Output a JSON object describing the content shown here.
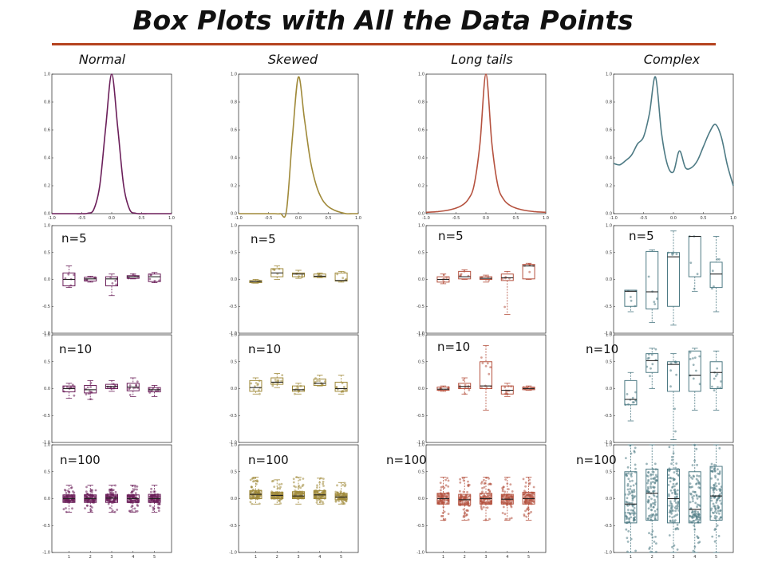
{
  "title": "Box Plots with All the Data Points",
  "rule_color": "#b5431f",
  "columns": [
    {
      "label": "Normal",
      "color": "#6b1f5a"
    },
    {
      "label": "Skewed",
      "color": "#a08a3a"
    },
    {
      "label": "Long tails",
      "color": "#b5523f"
    },
    {
      "label": "Complex",
      "color": "#4d7a84"
    }
  ],
  "row_labels": [
    "n=5",
    "n=10",
    "n=100"
  ],
  "chart_data": {
    "type": "line",
    "density_curves": {
      "xlim": [
        -1.0,
        1.0
      ],
      "ylim": [
        0.0,
        1.0
      ],
      "xticks": [
        "-1.0",
        "-0.5",
        "0.0",
        "0.5",
        "1.0"
      ],
      "yticks": [
        "0.0",
        "0.2",
        "0.4",
        "0.6",
        "0.8",
        "1.0"
      ],
      "x": [
        -1.0,
        -0.9,
        -0.8,
        -0.7,
        -0.6,
        -0.5,
        -0.4,
        -0.3,
        -0.2,
        -0.1,
        0.0,
        0.1,
        0.2,
        0.3,
        0.4,
        0.5,
        0.6,
        0.7,
        0.8,
        0.9,
        1.0
      ],
      "series": [
        {
          "name": "Normal",
          "values": [
            0,
            0,
            0,
            0,
            0,
            0,
            0.003,
            0.03,
            0.2,
            0.62,
            1.0,
            0.62,
            0.2,
            0.03,
            0.003,
            0,
            0,
            0,
            0,
            0,
            0
          ]
        },
        {
          "name": "Skewed",
          "values": [
            0,
            0,
            0,
            0,
            0,
            0,
            0,
            0,
            0.02,
            0.55,
            0.98,
            0.68,
            0.38,
            0.2,
            0.1,
            0.05,
            0.025,
            0.01,
            0,
            0,
            0
          ]
        },
        {
          "name": "Long tails",
          "values": [
            0.01,
            0.012,
            0.015,
            0.02,
            0.028,
            0.04,
            0.06,
            0.1,
            0.2,
            0.5,
            1.0,
            0.5,
            0.2,
            0.1,
            0.06,
            0.04,
            0.028,
            0.02,
            0.015,
            0.012,
            0.01
          ]
        },
        {
          "name": "Complex",
          "values": [
            0.36,
            0.35,
            0.38,
            0.42,
            0.5,
            0.55,
            0.72,
            0.98,
            0.58,
            0.35,
            0.3,
            0.45,
            0.33,
            0.33,
            0.38,
            0.48,
            0.58,
            0.64,
            0.55,
            0.35,
            0.2
          ]
        }
      ]
    },
    "box_rows": [
      {
        "label": "n=5",
        "ylim": [
          -1.0,
          1.0
        ],
        "yticks": [
          "-1.0",
          "-0.5",
          "0.0",
          "0.5",
          "1.0"
        ],
        "xticks": [],
        "panels": [
          {
            "column": "Normal",
            "boxes": [
              {
                "min": -0.15,
                "q1": -0.12,
                "median": 0.0,
                "q3": 0.12,
                "max": 0.25
              },
              {
                "min": -0.05,
                "q1": -0.03,
                "median": 0.01,
                "q3": 0.04,
                "max": 0.06
              },
              {
                "min": -0.3,
                "q1": -0.12,
                "median": 0.01,
                "q3": 0.05,
                "max": 0.1
              },
              {
                "min": 0.01,
                "q1": 0.02,
                "median": 0.05,
                "q3": 0.07,
                "max": 0.1
              },
              {
                "min": -0.06,
                "q1": -0.04,
                "median": 0.05,
                "q3": 0.1,
                "max": 0.13
              }
            ]
          },
          {
            "column": "Skewed",
            "boxes": [
              {
                "min": -0.07,
                "q1": -0.06,
                "median": -0.04,
                "q3": -0.02,
                "max": 0.0
              },
              {
                "min": 0.0,
                "q1": 0.05,
                "median": 0.12,
                "q3": 0.2,
                "max": 0.25
              },
              {
                "min": 0.02,
                "q1": 0.05,
                "median": 0.1,
                "q3": 0.12,
                "max": 0.17
              },
              {
                "min": 0.03,
                "q1": 0.04,
                "median": 0.06,
                "q3": 0.1,
                "max": 0.12
              },
              {
                "min": -0.05,
                "q1": -0.03,
                "median": -0.02,
                "q3": 0.12,
                "max": 0.15
              }
            ]
          },
          {
            "column": "Long tails",
            "boxes": [
              {
                "min": -0.08,
                "q1": -0.05,
                "median": 0.0,
                "q3": 0.05,
                "max": 0.1
              },
              {
                "min": 0.0,
                "q1": 0.01,
                "median": 0.05,
                "q3": 0.15,
                "max": 0.18
              },
              {
                "min": -0.05,
                "q1": 0.0,
                "median": 0.02,
                "q3": 0.05,
                "max": 0.08
              },
              {
                "min": -0.65,
                "q1": -0.02,
                "median": 0.03,
                "q3": 0.1,
                "max": 0.15
              },
              {
                "min": 0.0,
                "q1": 0.01,
                "median": 0.25,
                "q3": 0.28,
                "max": 0.3
              }
            ]
          },
          {
            "column": "Complex",
            "boxes": [
              {
                "min": -0.6,
                "q1": -0.5,
                "median": -0.22,
                "q3": -0.2,
                "max": -0.2
              },
              {
                "min": -0.8,
                "q1": -0.55,
                "median": -0.23,
                "q3": 0.52,
                "max": 0.55
              },
              {
                "min": -0.85,
                "q1": -0.5,
                "median": 0.42,
                "q3": 0.5,
                "max": 0.9
              },
              {
                "min": -0.22,
                "q1": 0.05,
                "median": 0.8,
                "q3": 0.8,
                "max": 0.8
              },
              {
                "min": -0.6,
                "q1": -0.15,
                "median": 0.1,
                "q3": 0.32,
                "max": 0.8
              }
            ]
          }
        ]
      },
      {
        "label": "n=10",
        "ylim": [
          -1.0,
          1.0
        ],
        "yticks": [
          "-1.0",
          "-0.5",
          "0.0",
          "0.5",
          "1.0"
        ],
        "xticks": [],
        "panels": [
          {
            "column": "Normal",
            "boxes": [
              {
                "min": -0.18,
                "q1": -0.06,
                "median": 0.0,
                "q3": 0.05,
                "max": 0.1
              },
              {
                "min": -0.2,
                "q1": -0.08,
                "median": -0.02,
                "q3": 0.06,
                "max": 0.15
              },
              {
                "min": -0.05,
                "q1": 0.0,
                "median": 0.04,
                "q3": 0.08,
                "max": 0.15
              },
              {
                "min": -0.15,
                "q1": -0.04,
                "median": 0.03,
                "q3": 0.1,
                "max": 0.2
              },
              {
                "min": -0.15,
                "q1": -0.06,
                "median": -0.02,
                "q3": 0.02,
                "max": 0.06
              }
            ]
          },
          {
            "column": "Skewed",
            "boxes": [
              {
                "min": -0.1,
                "q1": -0.05,
                "median": 0.02,
                "q3": 0.15,
                "max": 0.2
              },
              {
                "min": 0.02,
                "q1": 0.08,
                "median": 0.12,
                "q3": 0.2,
                "max": 0.28
              },
              {
                "min": -0.1,
                "q1": -0.05,
                "median": -0.02,
                "q3": 0.05,
                "max": 0.1
              },
              {
                "min": 0.05,
                "q1": 0.06,
                "median": 0.1,
                "q3": 0.18,
                "max": 0.25
              },
              {
                "min": -0.1,
                "q1": -0.05,
                "median": 0.0,
                "q3": 0.12,
                "max": 0.25
              }
            ]
          },
          {
            "column": "Long tails",
            "boxes": [
              {
                "min": -0.05,
                "q1": -0.03,
                "median": -0.01,
                "q3": 0.03,
                "max": 0.05
              },
              {
                "min": -0.1,
                "q1": 0.0,
                "median": 0.04,
                "q3": 0.1,
                "max": 0.2
              },
              {
                "min": -0.4,
                "q1": 0.0,
                "median": 0.05,
                "q3": 0.5,
                "max": 0.8
              },
              {
                "min": -0.15,
                "q1": -0.1,
                "median": -0.03,
                "q3": 0.05,
                "max": 0.1
              },
              {
                "min": -0.03,
                "q1": -0.02,
                "median": 0.0,
                "q3": 0.03,
                "max": 0.05
              }
            ]
          },
          {
            "column": "Complex",
            "boxes": [
              {
                "min": -0.6,
                "q1": -0.3,
                "median": -0.2,
                "q3": 0.15,
                "max": 0.3
              },
              {
                "min": 0.0,
                "q1": 0.3,
                "median": 0.52,
                "q3": 0.65,
                "max": 0.75
              },
              {
                "min": -0.95,
                "q1": -0.05,
                "median": 0.45,
                "q3": 0.5,
                "max": 0.65
              },
              {
                "min": -0.4,
                "q1": -0.05,
                "median": 0.25,
                "q3": 0.7,
                "max": 0.75
              },
              {
                "min": -0.4,
                "q1": 0.0,
                "median": 0.3,
                "q3": 0.5,
                "max": 0.7
              }
            ]
          }
        ]
      },
      {
        "label": "n=100",
        "ylim": [
          -1.0,
          1.0
        ],
        "yticks": [
          "-1.0",
          "-0.5",
          "0.0",
          "0.5",
          "1.0"
        ],
        "xticks": [
          "1",
          "2",
          "3",
          "4",
          "5"
        ],
        "panels": [
          {
            "column": "Normal",
            "boxes": [
              {
                "min": -0.25,
                "q1": -0.07,
                "median": 0.0,
                "q3": 0.07,
                "max": 0.25
              },
              {
                "min": -0.25,
                "q1": -0.07,
                "median": 0.0,
                "q3": 0.07,
                "max": 0.25
              },
              {
                "min": -0.25,
                "q1": -0.07,
                "median": 0.01,
                "q3": 0.08,
                "max": 0.25
              },
              {
                "min": -0.25,
                "q1": -0.07,
                "median": 0.0,
                "q3": 0.07,
                "max": 0.25
              },
              {
                "min": -0.25,
                "q1": -0.07,
                "median": 0.0,
                "q3": 0.08,
                "max": 0.25
              }
            ]
          },
          {
            "column": "Skewed",
            "boxes": [
              {
                "min": -0.1,
                "q1": 0.0,
                "median": 0.08,
                "q3": 0.15,
                "max": 0.4
              },
              {
                "min": -0.1,
                "q1": 0.0,
                "median": 0.06,
                "q3": 0.12,
                "max": 0.35
              },
              {
                "min": -0.1,
                "q1": 0.0,
                "median": 0.05,
                "q3": 0.13,
                "max": 0.4
              },
              {
                "min": -0.1,
                "q1": 0.0,
                "median": 0.07,
                "q3": 0.15,
                "max": 0.38
              },
              {
                "min": -0.1,
                "q1": -0.02,
                "median": 0.03,
                "q3": 0.1,
                "max": 0.3
              }
            ]
          },
          {
            "column": "Long tails",
            "boxes": [
              {
                "min": -0.4,
                "q1": -0.1,
                "median": 0.0,
                "q3": 0.1,
                "max": 0.4
              },
              {
                "min": -0.4,
                "q1": -0.12,
                "median": -0.02,
                "q3": 0.08,
                "max": 0.4
              },
              {
                "min": -0.4,
                "q1": -0.1,
                "median": 0.0,
                "q3": 0.1,
                "max": 0.4
              },
              {
                "min": -0.4,
                "q1": -0.1,
                "median": -0.01,
                "q3": 0.08,
                "max": 0.4
              },
              {
                "min": -0.4,
                "q1": -0.1,
                "median": 0.0,
                "q3": 0.12,
                "max": 0.4
              }
            ]
          },
          {
            "column": "Complex",
            "boxes": [
              {
                "min": -1.0,
                "q1": -0.45,
                "median": -0.1,
                "q3": 0.5,
                "max": 1.0
              },
              {
                "min": -1.0,
                "q1": -0.4,
                "median": 0.1,
                "q3": 0.55,
                "max": 1.0
              },
              {
                "min": -1.0,
                "q1": -0.45,
                "median": 0.0,
                "q3": 0.55,
                "max": 1.0
              },
              {
                "min": -1.0,
                "q1": -0.45,
                "median": -0.2,
                "q3": 0.5,
                "max": 1.0
              },
              {
                "min": -1.0,
                "q1": -0.4,
                "median": 0.05,
                "q3": 0.6,
                "max": 1.0
              }
            ]
          }
        ]
      }
    ]
  }
}
